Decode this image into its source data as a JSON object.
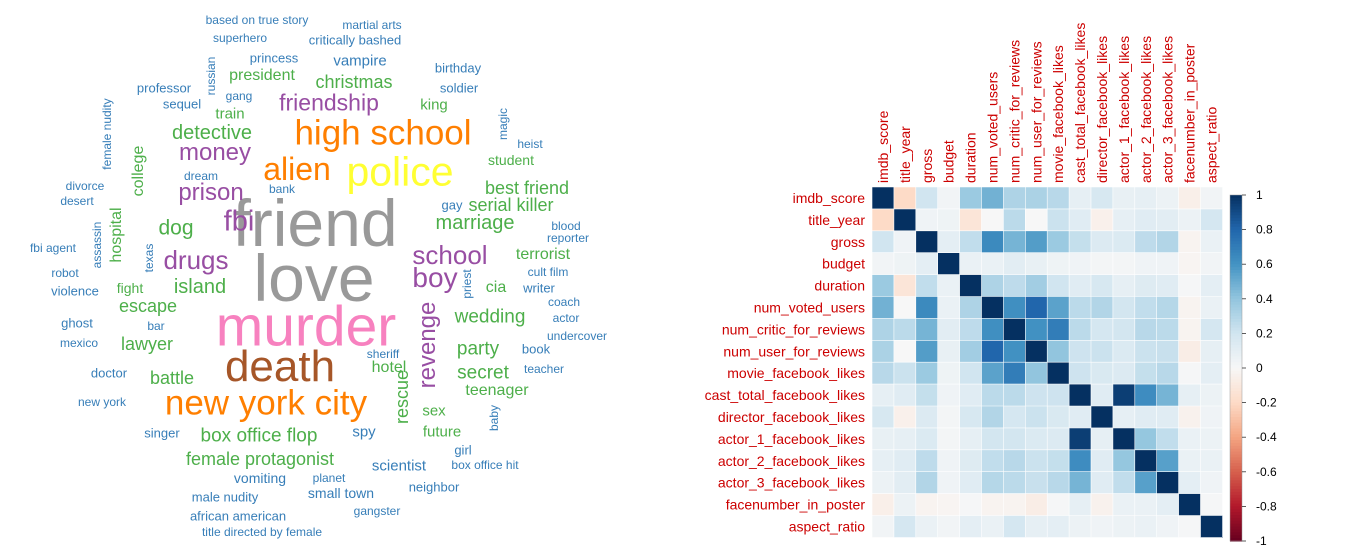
{
  "chart_data": [
    {
      "type": "wordcloud",
      "palette": {
        "gray": "#999999",
        "pink": "#f781bf",
        "brown": "#a65628",
        "orange": "#ff7f00",
        "yellow": "#ffff33",
        "purple": "#984ea3",
        "green": "#4daf4a",
        "blue": "#377eb8"
      },
      "words": [
        {
          "text": "friend",
          "color": "gray",
          "weight": 100,
          "vertical": false
        },
        {
          "text": "love",
          "color": "gray",
          "weight": 100,
          "vertical": false
        },
        {
          "text": "murder",
          "color": "pink",
          "weight": 85,
          "vertical": false
        },
        {
          "text": "death",
          "color": "brown",
          "weight": 65,
          "vertical": false
        },
        {
          "text": "police",
          "color": "yellow",
          "weight": 60,
          "vertical": false
        },
        {
          "text": "high school",
          "color": "orange",
          "weight": 50,
          "vertical": false
        },
        {
          "text": "new york city",
          "color": "orange",
          "weight": 50,
          "vertical": false
        },
        {
          "text": "alien",
          "color": "orange",
          "weight": 45,
          "vertical": false
        },
        {
          "text": "fbi",
          "color": "purple",
          "weight": 40,
          "vertical": false
        },
        {
          "text": "boy",
          "color": "purple",
          "weight": 38,
          "vertical": false
        },
        {
          "text": "school",
          "color": "purple",
          "weight": 35,
          "vertical": false
        },
        {
          "text": "drugs",
          "color": "purple",
          "weight": 35,
          "vertical": false
        },
        {
          "text": "prison",
          "color": "purple",
          "weight": 32,
          "vertical": false
        },
        {
          "text": "revenge",
          "color": "purple",
          "weight": 32,
          "vertical": true
        },
        {
          "text": "money",
          "color": "purple",
          "weight": 32,
          "vertical": false
        },
        {
          "text": "friendship",
          "color": "purple",
          "weight": 30,
          "vertical": false
        },
        {
          "text": "dog",
          "color": "green",
          "weight": 28,
          "vertical": false
        },
        {
          "text": "detective",
          "color": "green",
          "weight": 26,
          "vertical": false
        },
        {
          "text": "island",
          "color": "green",
          "weight": 25,
          "vertical": false
        },
        {
          "text": "marriage",
          "color": "green",
          "weight": 25,
          "vertical": false
        },
        {
          "text": "wedding",
          "color": "green",
          "weight": 24,
          "vertical": false
        },
        {
          "text": "party",
          "color": "green",
          "weight": 24,
          "vertical": false
        },
        {
          "text": "secret",
          "color": "green",
          "weight": 24,
          "vertical": false
        },
        {
          "text": "box office flop",
          "color": "green",
          "weight": 24,
          "vertical": false
        },
        {
          "text": "female protagonist",
          "color": "green",
          "weight": 23,
          "vertical": false
        },
        {
          "text": "christmas",
          "color": "green",
          "weight": 23,
          "vertical": false
        },
        {
          "text": "escape",
          "color": "green",
          "weight": 22,
          "vertical": false
        },
        {
          "text": "lawyer",
          "color": "green",
          "weight": 22,
          "vertical": false
        },
        {
          "text": "battle",
          "color": "green",
          "weight": 22,
          "vertical": false
        },
        {
          "text": "best friend",
          "color": "green",
          "weight": 22,
          "vertical": false
        },
        {
          "text": "serial killer",
          "color": "green",
          "weight": 22,
          "vertical": false
        },
        {
          "text": "rescue",
          "color": "green",
          "weight": 22,
          "vertical": true
        },
        {
          "text": "hospital",
          "color": "green",
          "weight": 20,
          "vertical": true
        },
        {
          "text": "college",
          "color": "green",
          "weight": 19,
          "vertical": true
        },
        {
          "text": "terrorist",
          "color": "green",
          "weight": 20,
          "vertical": false
        },
        {
          "text": "teenager",
          "color": "green",
          "weight": 20,
          "vertical": false
        },
        {
          "text": "president",
          "color": "green",
          "weight": 19,
          "vertical": false
        },
        {
          "text": "train",
          "color": "green",
          "weight": 18,
          "vertical": false
        },
        {
          "text": "hotel",
          "color": "green",
          "weight": 19,
          "vertical": false
        },
        {
          "text": "cia",
          "color": "green",
          "weight": 19,
          "vertical": false
        },
        {
          "text": "sex",
          "color": "green",
          "weight": 18,
          "vertical": false
        },
        {
          "text": "future",
          "color": "green",
          "weight": 17,
          "vertical": false
        },
        {
          "text": "king",
          "color": "green",
          "weight": 17,
          "vertical": false
        },
        {
          "text": "fight",
          "color": "green",
          "weight": 16,
          "vertical": false
        },
        {
          "text": "student",
          "color": "green",
          "weight": 16,
          "vertical": false
        },
        {
          "text": "vampire",
          "color": "blue",
          "weight": 17,
          "vertical": false
        },
        {
          "text": "scientist",
          "color": "blue",
          "weight": 17,
          "vertical": false
        },
        {
          "text": "spy",
          "color": "blue",
          "weight": 17,
          "vertical": false
        },
        {
          "text": "small town",
          "color": "blue",
          "weight": 16,
          "vertical": false
        },
        {
          "text": "vomiting",
          "color": "blue",
          "weight": 16,
          "vertical": false
        },
        {
          "text": "book",
          "color": "blue",
          "weight": 15,
          "vertical": false
        },
        {
          "text": "girl",
          "color": "blue",
          "weight": 15,
          "vertical": false
        },
        {
          "text": "gay",
          "color": "blue",
          "weight": 15,
          "vertical": false
        },
        {
          "text": "writer",
          "color": "blue",
          "weight": 15,
          "vertical": false
        },
        {
          "text": "ghost",
          "color": "blue",
          "weight": 15,
          "vertical": false
        },
        {
          "text": "critically bashed",
          "color": "blue",
          "weight": 15,
          "vertical": false
        },
        {
          "text": "princess",
          "color": "blue",
          "weight": 15,
          "vertical": false
        },
        {
          "text": "sequel",
          "color": "blue",
          "weight": 15,
          "vertical": false
        },
        {
          "text": "professor",
          "color": "blue",
          "weight": 14,
          "vertical": false
        },
        {
          "text": "soldier",
          "color": "blue",
          "weight": 14,
          "vertical": false
        },
        {
          "text": "birthday",
          "color": "blue",
          "weight": 14,
          "vertical": false
        },
        {
          "text": "doctor",
          "color": "blue",
          "weight": 14,
          "vertical": false
        },
        {
          "text": "singer",
          "color": "blue",
          "weight": 14,
          "vertical": false
        },
        {
          "text": "male nudity",
          "color": "blue",
          "weight": 14,
          "vertical": false
        },
        {
          "text": "neighbor",
          "color": "blue",
          "weight": 14,
          "vertical": false
        },
        {
          "text": "african american",
          "color": "blue",
          "weight": 14,
          "vertical": false
        },
        {
          "text": "violence",
          "color": "blue",
          "weight": 14,
          "vertical": false
        },
        {
          "text": "cult film",
          "color": "blue",
          "weight": 13,
          "vertical": false
        },
        {
          "text": "teacher",
          "color": "blue",
          "weight": 13,
          "vertical": false
        },
        {
          "text": "actor",
          "color": "blue",
          "weight": 13,
          "vertical": false
        },
        {
          "text": "coach",
          "color": "blue",
          "weight": 13,
          "vertical": false
        },
        {
          "text": "bar",
          "color": "blue",
          "weight": 13,
          "vertical": false
        },
        {
          "text": "superhero",
          "color": "blue",
          "weight": 13,
          "vertical": false
        },
        {
          "text": "martial arts",
          "color": "blue",
          "weight": 13,
          "vertical": false
        },
        {
          "text": "based on true story",
          "color": "blue",
          "weight": 13,
          "vertical": false
        },
        {
          "text": "heist",
          "color": "blue",
          "weight": 13,
          "vertical": false
        },
        {
          "text": "magic",
          "color": "blue",
          "weight": 13,
          "vertical": true
        },
        {
          "text": "title directed by female",
          "color": "blue",
          "weight": 13,
          "vertical": false
        },
        {
          "text": "fbi agent",
          "color": "blue",
          "weight": 13,
          "vertical": false
        },
        {
          "text": "assassin",
          "color": "blue",
          "weight": 13,
          "vertical": true
        },
        {
          "text": "dream",
          "color": "blue",
          "weight": 12,
          "vertical": false
        },
        {
          "text": "divorce",
          "color": "blue",
          "weight": 12,
          "vertical": false
        },
        {
          "text": "desert",
          "color": "blue",
          "weight": 12,
          "vertical": false
        },
        {
          "text": "blood",
          "color": "blue",
          "weight": 12,
          "vertical": false
        },
        {
          "text": "reporter",
          "color": "blue",
          "weight": 12,
          "vertical": false
        },
        {
          "text": "robot",
          "color": "blue",
          "weight": 12,
          "vertical": false
        },
        {
          "text": "mexico",
          "color": "blue",
          "weight": 12,
          "vertical": false
        },
        {
          "text": "undercover",
          "color": "blue",
          "weight": 12,
          "vertical": false
        },
        {
          "text": "sheriff",
          "color": "blue",
          "weight": 12,
          "vertical": false
        },
        {
          "text": "new york",
          "color": "blue",
          "weight": 12,
          "vertical": false
        },
        {
          "text": "planet",
          "color": "blue",
          "weight": 12,
          "vertical": false
        },
        {
          "text": "gangster",
          "color": "blue",
          "weight": 12,
          "vertical": false
        },
        {
          "text": "box office hit",
          "color": "blue",
          "weight": 12,
          "vertical": false
        },
        {
          "text": "bank",
          "color": "blue",
          "weight": 11,
          "vertical": false
        },
        {
          "text": "gang",
          "color": "blue",
          "weight": 11,
          "vertical": false
        },
        {
          "text": "russian",
          "color": "blue",
          "weight": 11,
          "vertical": true
        },
        {
          "text": "female nudity",
          "color": "blue",
          "weight": 12,
          "vertical": true
        },
        {
          "text": "texas",
          "color": "blue",
          "weight": 12,
          "vertical": true
        },
        {
          "text": "priest",
          "color": "blue",
          "weight": 11,
          "vertical": true
        },
        {
          "text": "baby",
          "color": "blue",
          "weight": 12,
          "vertical": true
        }
      ]
    },
    {
      "type": "heatmap",
      "variables": [
        "imdb_score",
        "title_year",
        "gross",
        "budget",
        "duration",
        "num_voted_users",
        "num_critic_for_reviews",
        "num_user_for_reviews",
        "movie_facebook_likes",
        "cast_total_facebook_likes",
        "director_facebook_likes",
        "actor_1_facebook_likes",
        "actor_2_facebook_likes",
        "actor_3_facebook_likes",
        "facenumber_in_poster",
        "aspect_ratio"
      ],
      "matrix": [
        [
          1.0,
          -0.2,
          0.2,
          0.03,
          0.37,
          0.48,
          0.31,
          0.32,
          0.28,
          0.09,
          0.17,
          0.08,
          0.09,
          0.06,
          -0.06,
          0.03
        ],
        [
          -0.2,
          1.0,
          0.04,
          0.05,
          -0.13,
          0.0,
          0.27,
          0.0,
          0.22,
          0.12,
          -0.05,
          0.09,
          0.12,
          0.11,
          0.06,
          0.18
        ],
        [
          0.2,
          0.04,
          1.0,
          0.1,
          0.25,
          0.64,
          0.47,
          0.56,
          0.37,
          0.24,
          0.14,
          0.15,
          0.26,
          0.3,
          -0.03,
          0.07
        ],
        [
          0.03,
          0.05,
          0.1,
          1.0,
          0.07,
          0.07,
          0.11,
          0.08,
          0.05,
          0.04,
          0.02,
          0.02,
          0.04,
          0.04,
          -0.02,
          0.03
        ],
        [
          0.37,
          -0.13,
          0.25,
          0.07,
          1.0,
          0.31,
          0.26,
          0.35,
          0.2,
          0.12,
          0.17,
          0.09,
          0.13,
          0.12,
          0.01,
          0.1
        ],
        [
          0.48,
          0.0,
          0.64,
          0.07,
          0.31,
          1.0,
          0.62,
          0.8,
          0.54,
          0.27,
          0.3,
          0.19,
          0.25,
          0.29,
          -0.03,
          0.07
        ],
        [
          0.31,
          0.27,
          0.47,
          0.11,
          0.26,
          0.62,
          1.0,
          0.61,
          0.7,
          0.27,
          0.18,
          0.19,
          0.28,
          0.27,
          -0.03,
          0.18
        ],
        [
          0.32,
          0.0,
          0.56,
          0.08,
          0.35,
          0.8,
          0.61,
          1.0,
          0.4,
          0.21,
          0.22,
          0.15,
          0.22,
          0.23,
          -0.07,
          0.09
        ],
        [
          0.28,
          0.22,
          0.37,
          0.05,
          0.2,
          0.54,
          0.7,
          0.4,
          1.0,
          0.21,
          0.16,
          0.14,
          0.24,
          0.28,
          0.01,
          0.1
        ],
        [
          0.09,
          0.12,
          0.24,
          0.04,
          0.12,
          0.27,
          0.27,
          0.21,
          0.21,
          1.0,
          0.12,
          0.95,
          0.63,
          0.47,
          0.09,
          0.06
        ],
        [
          0.17,
          -0.05,
          0.14,
          0.02,
          0.17,
          0.3,
          0.18,
          0.22,
          0.16,
          0.12,
          1.0,
          0.09,
          0.12,
          0.12,
          -0.04,
          0.04
        ],
        [
          0.08,
          0.09,
          0.15,
          0.02,
          0.09,
          0.19,
          0.19,
          0.15,
          0.14,
          0.95,
          0.09,
          1.0,
          0.39,
          0.25,
          0.07,
          0.06
        ],
        [
          0.09,
          0.12,
          0.26,
          0.04,
          0.13,
          0.25,
          0.28,
          0.22,
          0.24,
          0.63,
          0.12,
          0.39,
          1.0,
          0.55,
          0.07,
          0.07
        ],
        [
          0.06,
          0.11,
          0.3,
          0.04,
          0.12,
          0.29,
          0.27,
          0.23,
          0.28,
          0.47,
          0.12,
          0.25,
          0.55,
          1.0,
          0.1,
          0.04
        ],
        [
          -0.06,
          0.06,
          -0.03,
          -0.02,
          0.01,
          -0.03,
          -0.03,
          -0.07,
          0.01,
          0.09,
          -0.04,
          0.07,
          0.07,
          0.1,
          1.0,
          0.01
        ],
        [
          0.03,
          0.18,
          0.07,
          0.03,
          0.1,
          0.07,
          0.18,
          0.09,
          0.1,
          0.06,
          0.04,
          0.06,
          0.07,
          0.04,
          0.01,
          1.0
        ]
      ],
      "colorbar_ticks": [
        "1",
        "0.8",
        "0.6",
        "0.4",
        "0.2",
        "0",
        "-0.2",
        "-0.4",
        "-0.6",
        "-0.8",
        "-1"
      ],
      "range": [
        -1,
        1
      ],
      "label_color": "#cc0000",
      "colorscale": {
        "negative_end": "#67001f",
        "positive_end": "#053061"
      }
    }
  ]
}
